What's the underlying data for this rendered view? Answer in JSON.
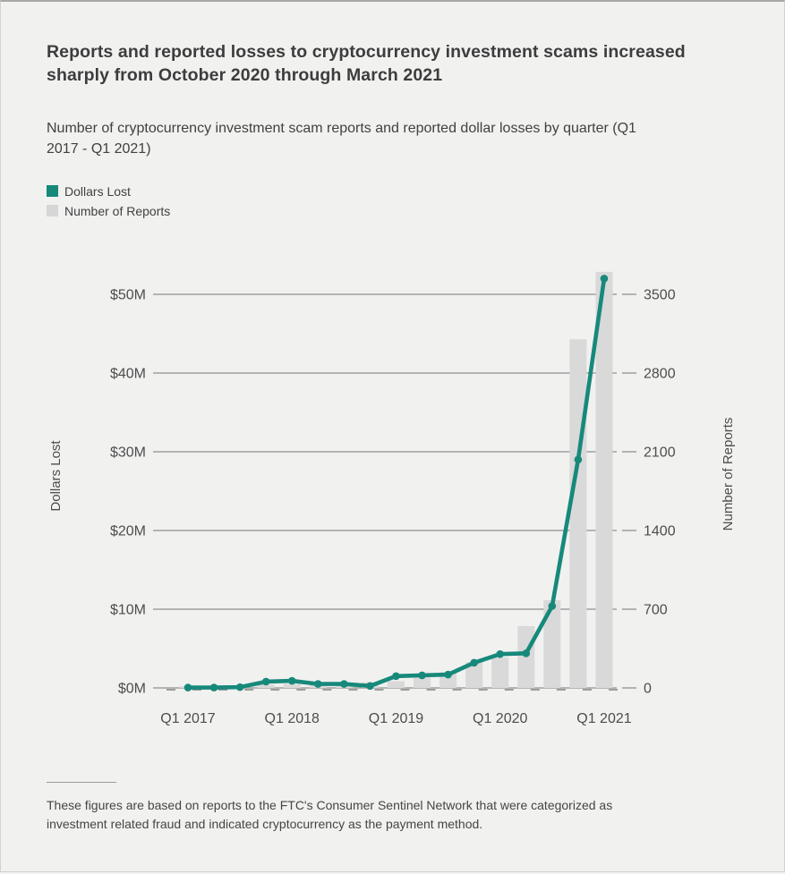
{
  "page": {
    "title": "Reports and reported losses to cryptocurrency investment scams increased sharply from October 2020 through March 2021",
    "subtitle": "Number of cryptocurrency investment scam reports and reported dollar losses by quarter (Q1 2017 - Q1 2021)",
    "footnote": "These figures are based on reports to the FTC's Consumer Sentinel Network that were categorized as investment related fraud and indicated cryptocurrency as the payment method."
  },
  "legend": [
    {
      "label": "Dollars Lost",
      "color": "#17897b"
    },
    {
      "label": "Number of Reports",
      "color": "#d6d6d6"
    }
  ],
  "colors": {
    "accent_teal": "#17897b",
    "bar_gray": "#d9d9d9",
    "grid_gray": "#8f8f8f",
    "tick_dash_gray": "#8a8a8a",
    "axis_text": "#4d4d4d",
    "background": "#f1f1f0"
  },
  "chart_data": {
    "type": "line+bar combo, dual axis",
    "categories": [
      "Q1 2017",
      "Q2 2017",
      "Q3 2017",
      "Q4 2017",
      "Q1 2018",
      "Q2 2018",
      "Q3 2018",
      "Q4 2018",
      "Q1 2019",
      "Q2 2019",
      "Q3 2019",
      "Q4 2019",
      "Q1 2020",
      "Q2 2020",
      "Q3 2020",
      "Q4 2020",
      "Q1 2021"
    ],
    "series": [
      {
        "name": "Dollars Lost",
        "type": "line",
        "axis": "left",
        "unit": "million USD",
        "values": [
          0.05,
          0.05,
          0.1,
          0.8,
          0.9,
          0.5,
          0.5,
          0.25,
          1.5,
          1.6,
          1.7,
          3.2,
          4.3,
          4.4,
          10.4,
          29,
          52
        ]
      },
      {
        "name": "Number of Reports",
        "type": "bar",
        "axis": "right",
        "unit": "reports",
        "values": [
          15,
          20,
          25,
          30,
          35,
          40,
          45,
          50,
          60,
          90,
          140,
          230,
          270,
          550,
          780,
          3100,
          3700
        ]
      }
    ],
    "left_axis": {
      "title": "Dollars Lost",
      "tick_labels": [
        "$0M",
        "$10M",
        "$20M",
        "$30M",
        "$40M",
        "$50M"
      ],
      "range_millions": [
        0,
        50
      ]
    },
    "right_axis": {
      "title": "Number of Reports",
      "tick_labels": [
        "0",
        "700",
        "1400",
        "2100",
        "2800",
        "3500"
      ],
      "range": [
        0,
        3500
      ]
    },
    "x_axis": {
      "shown_labels": [
        "Q1 2017",
        "Q1 2018",
        "Q1 2019",
        "Q1 2020",
        "Q1 2021"
      ]
    },
    "grid": true,
    "legend_position": "top-left"
  }
}
